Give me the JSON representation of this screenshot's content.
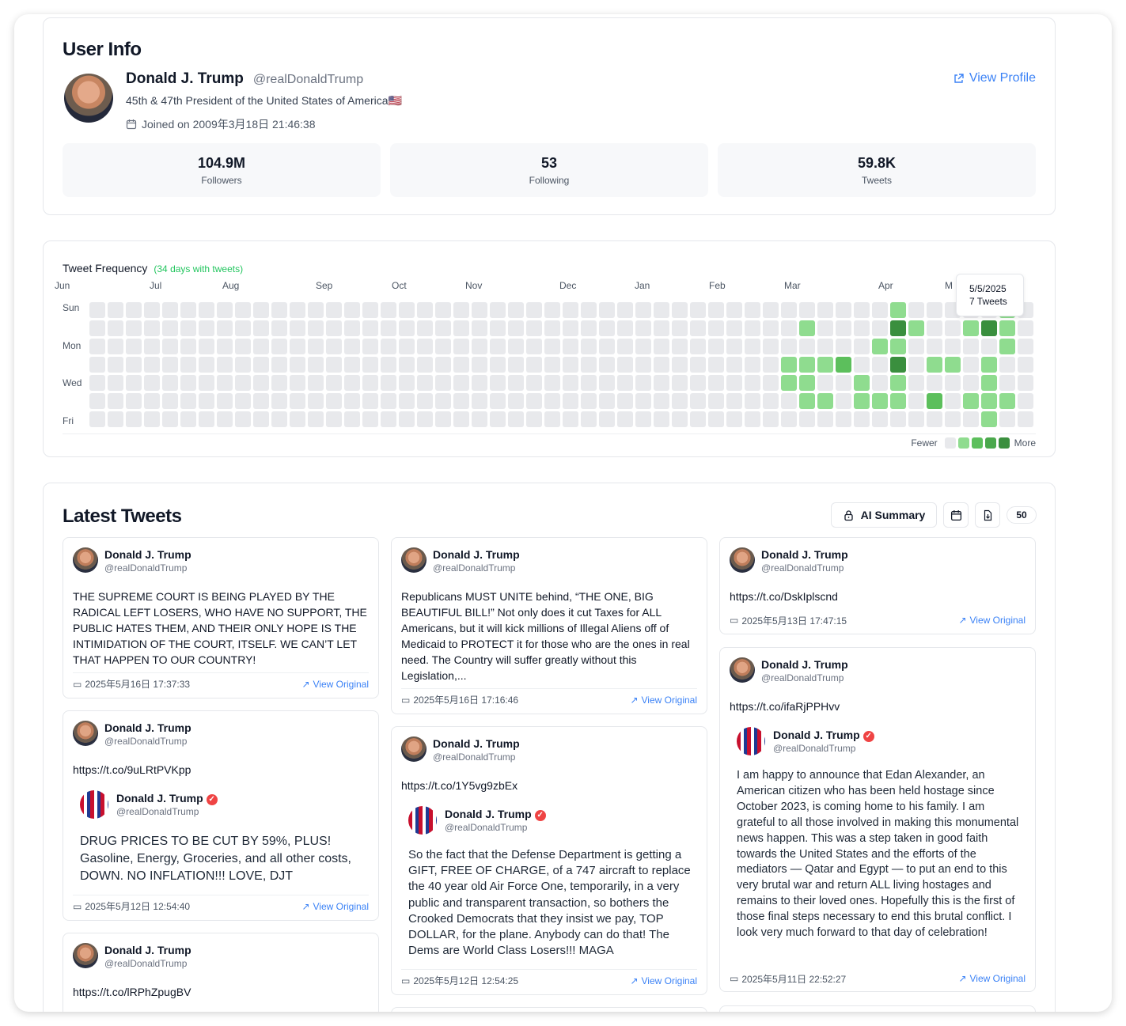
{
  "user": {
    "section_title": "User Info",
    "name": "Donald J. Trump",
    "handle": "@realDonaldTrump",
    "bio": "45th & 47th President of the United States of America🇺🇸",
    "joined": "Joined on 2009年3月18日 21:46:38",
    "view_profile": "View Profile",
    "stats": [
      {
        "value": "104.9M",
        "label": "Followers"
      },
      {
        "value": "53",
        "label": "Following"
      },
      {
        "value": "59.8K",
        "label": "Tweets"
      }
    ]
  },
  "frequency": {
    "title": "Tweet Frequency",
    "subtitle": "(34 days with tweets)",
    "months": [
      "Jun",
      "Jul",
      "Aug",
      "Sep",
      "Oct",
      "Nov",
      "Dec",
      "Jan",
      "Feb",
      "Mar",
      "Apr",
      "M"
    ],
    "days": [
      "Sun",
      "Mon",
      "Wed",
      "Fri"
    ],
    "legend_less": "Fewer",
    "legend_more": "More",
    "tooltip_date": "5/5/2025",
    "tooltip_count": "7 Tweets",
    "colors": {
      "empty": "#e8e9ec",
      "l1": "#8fdc8f",
      "l2": "#5cbf5c",
      "l3": "#3a8f3e"
    },
    "active_cells": [
      {
        "week": 39,
        "day": 1,
        "level": 1
      },
      {
        "week": 38,
        "day": 3,
        "level": 1
      },
      {
        "week": 38,
        "day": 4,
        "level": 1
      },
      {
        "week": 39,
        "day": 3,
        "level": 1
      },
      {
        "week": 39,
        "day": 4,
        "level": 1
      },
      {
        "week": 39,
        "day": 5,
        "level": 1
      },
      {
        "week": 40,
        "day": 3,
        "level": 1
      },
      {
        "week": 40,
        "day": 5,
        "level": 1
      },
      {
        "week": 41,
        "day": 3,
        "level": 2
      },
      {
        "week": 42,
        "day": 4,
        "level": 1
      },
      {
        "week": 42,
        "day": 5,
        "level": 1
      },
      {
        "week": 43,
        "day": 2,
        "level": 1
      },
      {
        "week": 43,
        "day": 5,
        "level": 1
      },
      {
        "week": 44,
        "day": 0,
        "level": 1
      },
      {
        "week": 44,
        "day": 1,
        "level": 3
      },
      {
        "week": 44,
        "day": 2,
        "level": 1
      },
      {
        "week": 44,
        "day": 3,
        "level": 3
      },
      {
        "week": 44,
        "day": 4,
        "level": 1
      },
      {
        "week": 44,
        "day": 5,
        "level": 1
      },
      {
        "week": 45,
        "day": 1,
        "level": 1
      },
      {
        "week": 46,
        "day": 3,
        "level": 1
      },
      {
        "week": 46,
        "day": 5,
        "level": 2
      },
      {
        "week": 47,
        "day": 3,
        "level": 1
      },
      {
        "week": 48,
        "day": 1,
        "level": 1
      },
      {
        "week": 48,
        "day": 5,
        "level": 1
      },
      {
        "week": 49,
        "day": 1,
        "level": 3
      },
      {
        "week": 49,
        "day": 3,
        "level": 1
      },
      {
        "week": 49,
        "day": 4,
        "level": 1
      },
      {
        "week": 49,
        "day": 5,
        "level": 1
      },
      {
        "week": 49,
        "day": 6,
        "level": 1
      },
      {
        "week": 50,
        "day": 0,
        "level": 1
      },
      {
        "week": 50,
        "day": 1,
        "level": 1
      },
      {
        "week": 50,
        "day": 2,
        "level": 1
      },
      {
        "week": 50,
        "day": 5,
        "level": 1
      }
    ]
  },
  "tweets": {
    "section_title": "Latest Tweets",
    "ai_summary": "AI Summary",
    "count": "50",
    "view_original": "View Original",
    "items": [
      {
        "name": "Donald J. Trump",
        "handle": "@realDonaldTrump",
        "text": "THE SUPREME COURT IS BEING PLAYED BY THE RADICAL LEFT LOSERS, WHO HAVE NO SUPPORT, THE PUBLIC HATES THEM, AND THEIR ONLY HOPE IS THE INTIMIDATION OF THE COURT, ITSELF. WE CAN’T LET THAT HAPPEN TO OUR COUNTRY!",
        "date": "2025年5月16日 17:37:33"
      },
      {
        "name": "Donald J. Trump",
        "handle": "@realDonaldTrump",
        "text": "https://t.co/9uLRtPVKpp",
        "quote_name": "Donald J. Trump",
        "quote_handle": "@realDonaldTrump",
        "quote_text": "DRUG PRICES TO BE CUT BY 59%, PLUS! Gasoline, Energy, Groceries, and all other costs, DOWN. NO INFLATION!!! LOVE, DJT",
        "date": "2025年5月12日 12:54:40"
      },
      {
        "name": "Donald J. Trump",
        "handle": "@realDonaldTrump",
        "text": "https://t.co/lRPhZpugBV"
      },
      {
        "name": "Donald J. Trump",
        "handle": "@realDonaldTrump",
        "text": "Republicans MUST UNITE behind, “THE ONE, BIG BEAUTIFUL BILL!” Not only does it cut Taxes for ALL Americans, but it will kick millions of Illegal Aliens off of Medicaid to PROTECT it for those who are the ones in real need. The Country will suffer greatly without this Legislation,...",
        "date": "2025年5月16日 17:16:46"
      },
      {
        "name": "Donald J. Trump",
        "handle": "@realDonaldTrump",
        "text": "https://t.co/1Y5vg9zbEx",
        "quote_name": "Donald J. Trump",
        "quote_handle": "@realDonaldTrump",
        "quote_text": "So the fact that the Defense Department is getting a GIFT, FREE OF CHARGE, of a 747 aircraft to replace the 40 year old Air Force One, temporarily, in a very public and transparent transaction, so bothers the Crooked Democrats that they insist we pay, TOP DOLLAR, for the plane. Anybody can do that! The Dems are World Class Losers!!! MAGA",
        "date": "2025年5月12日 12:54:25"
      },
      {
        "name": "Donald J. Trump",
        "handle": "@realDonaldTrump",
        "text": "https://t.co/DskIplscnd",
        "date": "2025年5月13日 17:47:15"
      },
      {
        "name": "Donald J. Trump",
        "handle": "@realDonaldTrump",
        "text": "https://t.co/ifaRjPPHvv",
        "quote_name": "Donald J. Trump",
        "quote_handle": "@realDonaldTrump",
        "quote_text": "I am happy to announce that Edan Alexander, an American citizen who has been held hostage since October 2023, is coming home to his family. I am grateful to all those involved in making this monumental news happen. This was a step taken in good faith towards the United States and the efforts of the mediators — Qatar and Egypt — to put an end to this very brutal war and return ALL living hostages and remains to their loved ones. Hopefully this is the first of those final steps necessary to end this brutal conflict. I look very much forward to that day of celebration!",
        "date": "2025年5月11日 22:52:27"
      }
    ]
  }
}
